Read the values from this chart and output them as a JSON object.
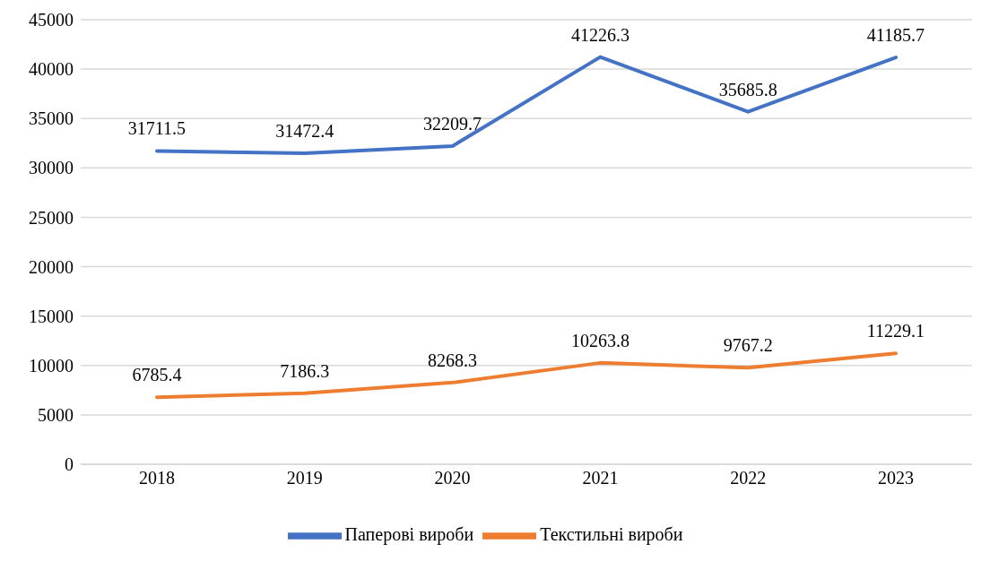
{
  "chart_data": {
    "type": "line",
    "categories": [
      "2018",
      "2019",
      "2020",
      "2021",
      "2022",
      "2023"
    ],
    "series": [
      {
        "name": "Паперові вироби",
        "color": "#4472c4",
        "values": [
          31711.5,
          31472.4,
          32209.7,
          41226.3,
          35685.8,
          41185.7
        ]
      },
      {
        "name": "Текстильні вироби",
        "color": "#ed7d31",
        "values": [
          6785.4,
          7186.3,
          8268.3,
          10263.8,
          9767.2,
          11229.1
        ]
      }
    ],
    "ylim": [
      0,
      45000
    ],
    "yticks": [
      0,
      5000,
      10000,
      15000,
      20000,
      25000,
      30000,
      35000,
      40000,
      45000
    ],
    "grid": "y",
    "legend": "bottom",
    "data_labels": true
  }
}
